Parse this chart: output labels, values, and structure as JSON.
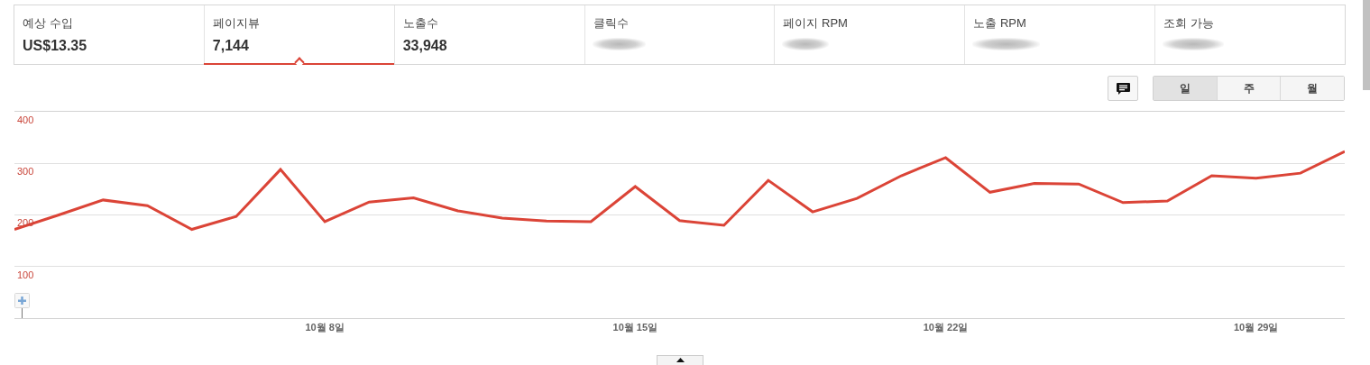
{
  "chart_data": [
    {
      "type": "other",
      "categories": [
        "예상 수입",
        "페이지뷰",
        "노출수",
        "클릭수",
        "페이지 RPM",
        "노출 RPM",
        "조회 가능"
      ],
      "value_labels": [
        "US$13.35",
        "7,144",
        "33,948",
        null,
        null,
        null,
        null
      ]
    },
    {
      "type": "line",
      "annotations": [
        "일",
        "주",
        "월"
      ],
      "x": [
        "--10-01",
        "--10-02",
        "--10-03",
        "--10-04",
        "--10-05",
        "--10-06",
        "--10-07",
        "--10-08",
        "--10-09",
        "--10-10",
        "--10-11",
        "--10-12",
        "--10-13",
        "--10-14",
        "--10-15",
        "--10-16",
        "--10-17",
        "--10-18",
        "--10-19",
        "--10-20",
        "--10-21",
        "--10-22",
        "--10-23",
        "--10-24",
        "--10-25",
        "--10-26",
        "--10-27",
        "--10-28",
        "--10-29",
        "--10-30",
        "--10-31"
      ],
      "values": [
        172,
        200,
        229,
        218,
        172,
        197,
        288,
        187,
        225,
        233,
        208,
        194,
        188,
        187,
        255,
        189,
        180,
        267,
        206,
        232,
        276,
        311,
        244,
        261,
        260,
        224,
        227,
        276,
        271,
        281,
        323
      ],
      "color": "#db4437",
      "line_style": "solid",
      "xlim": [
        "--10-01",
        "--10-31"
      ],
      "xticks": [
        {
          "value": "--10-08",
          "label": "10월 8일"
        },
        {
          "value": "--10-15",
          "label": "10월 15일"
        },
        {
          "value": "--10-22",
          "label": "10월 22일"
        },
        {
          "value": "--10-29",
          "label": "10월 29일"
        }
      ],
      "ylim": [
        0,
        400
      ],
      "yticks": [
        100,
        200,
        300,
        400
      ],
      "grid": "y"
    }
  ]
}
